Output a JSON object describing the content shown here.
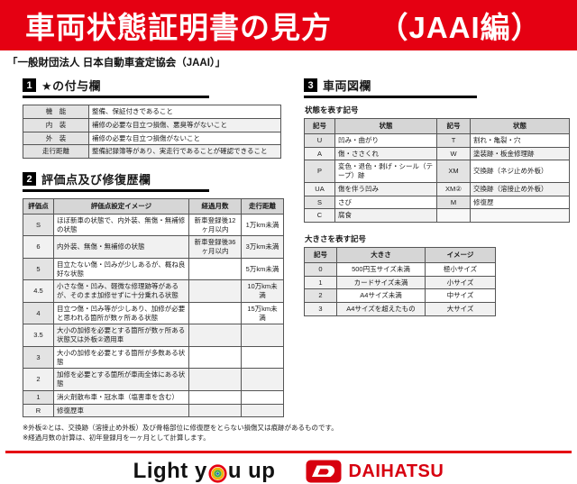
{
  "header": {
    "title": "車両状態証明書の見方　　（JAAI編）",
    "subtitle": "「一般財団法人 日本自動車査定協会（JAAI）」"
  },
  "section1": {
    "number": "1",
    "title": "★の付与欄",
    "rows": [
      [
        "機　能",
        "整備、保証付きであること"
      ],
      [
        "内　装",
        "補修の必要な目立つ損傷、悪臭等がないこと"
      ],
      [
        "外　装",
        "補修の必要な目立つ損傷がないこと"
      ],
      [
        "走行距離",
        "整備記録簿等があり、実走行であることが確認できること"
      ]
    ]
  },
  "section2": {
    "number": "2",
    "title": "評価点及び修復歴欄",
    "headers": [
      "評価点",
      "評価点設定イメージ",
      "経過月数",
      "走行距離"
    ],
    "rows": [
      [
        "S",
        "ほぼ新車の状態で、内外装、無傷・無補修の状態",
        "新車登録後12ヶ月以内",
        "1万km未満"
      ],
      [
        "6",
        "内外装、無傷・無補修の状態",
        "新車登録後36ヶ月以内",
        "3万km未満"
      ],
      [
        "5",
        "目立たない傷・凹みが少しあるが、概ね良好な状態",
        "",
        "5万km未満"
      ],
      [
        "4.5",
        "小さな傷・凹み、軽微な修理跡等があるが、そのまま加修せずに十分乗れる状態",
        "",
        "10万km未満"
      ],
      [
        "4",
        "目立つ傷・凹み等が少しあり、加修が必要と思われる箇所が数ヶ所ある状態",
        "",
        "15万km未満"
      ],
      [
        "3.5",
        "大小の加修を必要とする箇所が数ヶ所ある状態又は外板②適用車",
        "",
        ""
      ],
      [
        "3",
        "大小の加修を必要とする箇所が多数ある状態",
        "",
        ""
      ],
      [
        "2",
        "加修を必要とする箇所が車両全体にある状態",
        "",
        ""
      ],
      [
        "1",
        "消火剤散布車・冠水車（塩害車を含む）",
        "",
        ""
      ],
      [
        "R",
        "修復歴車",
        "",
        ""
      ]
    ]
  },
  "section3": {
    "number": "3",
    "title": "車両図欄",
    "condition_label": "状態を表す記号",
    "condition_headers": [
      "記号",
      "状態",
      "記号",
      "状態"
    ],
    "condition_rows": [
      [
        "U",
        "凹み・曲がり",
        "T",
        "割れ・亀裂・穴"
      ],
      [
        "A",
        "傷・ささくれ",
        "W",
        "塗装跡・板金修理跡"
      ],
      [
        "P",
        "変色・退色・剥げ・シール（テープ）跡",
        "XM",
        "交換跡（ネジ止め外板）"
      ],
      [
        "UA",
        "傷を伴う凹み",
        "XM②",
        "交換跡（溶接止め外板）"
      ],
      [
        "S",
        "さび",
        "M",
        "修復歴"
      ],
      [
        "C",
        "腐食",
        "",
        ""
      ]
    ],
    "size_label": "大きさを表す記号",
    "size_headers": [
      "記号",
      "大きさ",
      "イメージ"
    ],
    "size_rows": [
      [
        "0",
        "500円玉サイズ未満",
        "極小サイズ"
      ],
      [
        "1",
        "カードサイズ未満",
        "小サイズ"
      ],
      [
        "2",
        "A4サイズ未満",
        "中サイズ"
      ],
      [
        "3",
        "A4サイズを超えたもの",
        "大サイズ"
      ]
    ]
  },
  "footnotes": [
    "※外板②とは、交換跡（溶接止め外板）及び骨格部位に修復歴をとらない損傷又は痕跡があるものです。",
    "※経過月数の計算は、初年登録月を一ヶ月として計算します。"
  ],
  "footer": {
    "slogan_part1": "Light y",
    "slogan_part2": "u up",
    "brand": "DAIHATSU"
  },
  "colors": {
    "brand_red": "#e50012",
    "daihatsu_red": "#d7000f",
    "ring_red": "#e50012",
    "ring_yellow": "#f0b400",
    "ring_green": "#3fae49",
    "ring_blue": "#1b62b5"
  }
}
